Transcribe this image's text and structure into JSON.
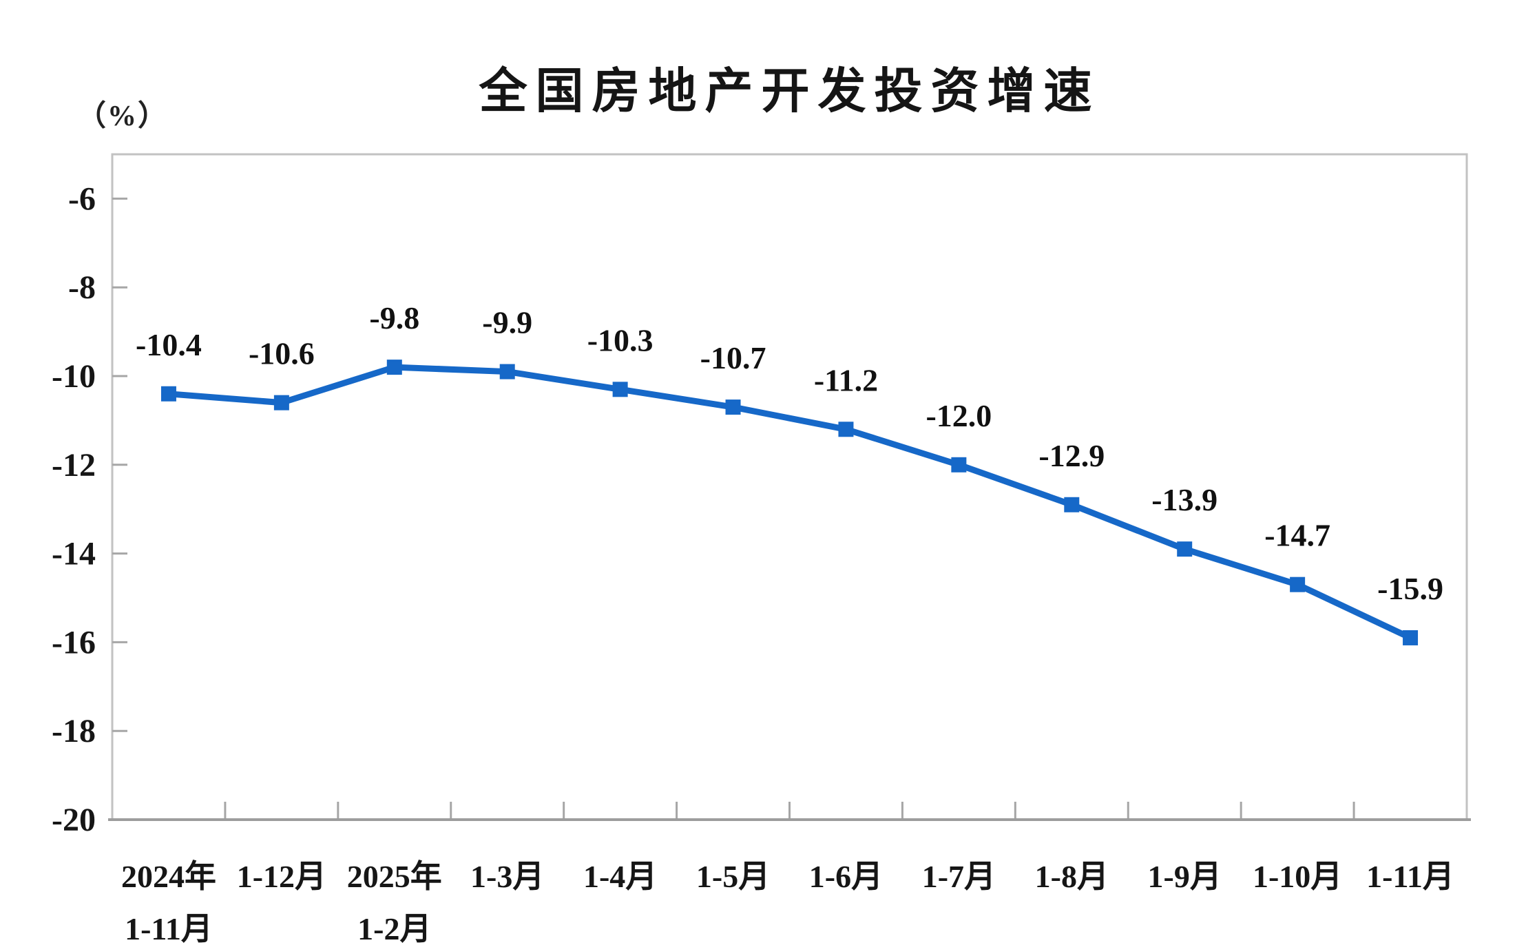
{
  "page": {
    "background": "#ffffff"
  },
  "chart_data": {
    "type": "line",
    "title": "全国房地产开发投资增速",
    "y_unit_label": "（%）",
    "categories": [
      "2024年\n1-11月",
      "1-12月",
      "2025年\n1-2月",
      "1-3月",
      "1-4月",
      "1-5月",
      "1-6月",
      "1-7月",
      "1-8月",
      "1-9月",
      "1-10月",
      "1-11月"
    ],
    "series": [
      {
        "name": "全国房地产开发投资增速",
        "values": [
          -10.4,
          -10.6,
          -9.8,
          -9.9,
          -10.3,
          -10.7,
          -11.2,
          -12.0,
          -12.9,
          -13.9,
          -14.7,
          -15.9
        ],
        "data_labels": [
          "-10.4",
          "-10.6",
          "-9.8",
          "-9.9",
          "-10.3",
          "-10.7",
          "-11.2",
          "-12.0",
          "-12.9",
          "-13.9",
          "-14.7",
          "-15.9"
        ]
      }
    ],
    "yticks": [
      -6,
      -8,
      -10,
      -12,
      -14,
      -16,
      -18,
      -20
    ],
    "ytick_labels": [
      "-6",
      "-8",
      "-10",
      "-12",
      "-14",
      "-16",
      "-18",
      "-20"
    ],
    "ylim": [
      -20,
      -5
    ],
    "grid": false,
    "legend_position": "none",
    "marker_shape": "square",
    "colors": {
      "series": "#1668c8",
      "plot_border": "#c2c2c2",
      "axis_line": "#9d9d9d",
      "tick": "#a6a6a6",
      "text": "#161616",
      "data_label_text": "#111111"
    }
  }
}
